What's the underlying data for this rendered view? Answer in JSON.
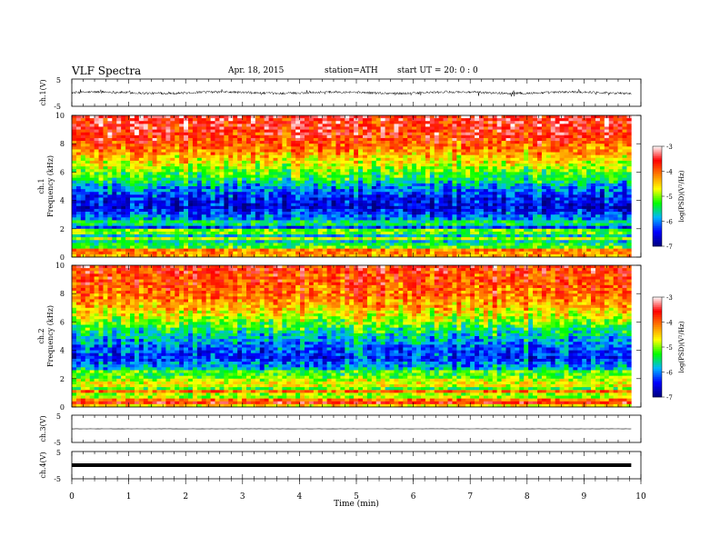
{
  "header": {
    "title": "VLF  Spectra",
    "date": "Apr. 18, 2015",
    "station": "station=ATH",
    "start": "start  UT  =   20: 0  : 0"
  },
  "chart_data": [
    {
      "type": "line",
      "panel": "ch1-waveform",
      "ylabel": "ch.1(V)",
      "ylim": [
        -5,
        5
      ],
      "yticks": [
        "5",
        "-5"
      ],
      "xlim": [
        0,
        10
      ],
      "data_end_min": 9.83,
      "trace": "dense noise waveform, amplitude about -0.5 to 0.5 V with occasional spikes near ±1 V"
    },
    {
      "type": "heatmap",
      "panel": "ch1-spectrogram",
      "ylabel": "Frequency  (kHz)",
      "channel_label": "ch.1",
      "ylim": [
        0,
        10
      ],
      "yticks": [
        "0",
        "2",
        "4",
        "6",
        "8",
        "10"
      ],
      "xlim": [
        0,
        10
      ],
      "data_end_min": 9.83,
      "colorbar": {
        "label": "log(PSD)(V²/Hz)",
        "range": [
          -7,
          -3
        ],
        "ticks": [
          "-3",
          "-4",
          "-5",
          "-6",
          "-7"
        ],
        "colors": [
          "#000080",
          "#0000ff",
          "#00b4ff",
          "#00ff00",
          "#ffff00",
          "#ff8000",
          "#ff0000",
          "#ffffff"
        ]
      },
      "profile": [
        {
          "f": 0.0,
          "log_psd": -3.6
        },
        {
          "f": 0.5,
          "log_psd": -4.6
        },
        {
          "f": 1.0,
          "log_psd": -5.3
        },
        {
          "f": 1.8,
          "log_psd": -5.6
        },
        {
          "f": 2.2,
          "log_psd": -5.9
        },
        {
          "f": 2.8,
          "log_psd": -6.0
        },
        {
          "f": 3.5,
          "log_psd": -6.6
        },
        {
          "f": 4.2,
          "log_psd": -6.4
        },
        {
          "f": 5.0,
          "log_psd": -5.9
        },
        {
          "f": 5.5,
          "log_psd": -5.4
        },
        {
          "f": 6.5,
          "log_psd": -4.8
        },
        {
          "f": 7.5,
          "log_psd": -4.2
        },
        {
          "f": 8.5,
          "log_psd": -3.7
        },
        {
          "f": 10.0,
          "log_psd": -3.5
        }
      ]
    },
    {
      "type": "heatmap",
      "panel": "ch2-spectrogram",
      "ylabel": "Frequency  (kHz)",
      "channel_label": "ch.2",
      "ylim": [
        0,
        10
      ],
      "yticks": [
        "0",
        "2",
        "4",
        "6",
        "8",
        "10"
      ],
      "xlim": [
        0,
        10
      ],
      "data_end_min": 9.83,
      "colorbar": {
        "label": "log(PSD)(V²/Hz)",
        "range": [
          -7,
          -3
        ],
        "ticks": [
          "-3",
          "-4",
          "-5",
          "-6",
          "-7"
        ],
        "colors": [
          "#000080",
          "#0000ff",
          "#00b4ff",
          "#00ff00",
          "#ffff00",
          "#ff8000",
          "#ff0000",
          "#ffffff"
        ]
      },
      "profile": [
        {
          "f": 0.0,
          "log_psd": -3.9
        },
        {
          "f": 0.5,
          "log_psd": -4.3
        },
        {
          "f": 1.2,
          "log_psd": -4.7
        },
        {
          "f": 2.0,
          "log_psd": -5.3
        },
        {
          "f": 2.8,
          "log_psd": -5.8
        },
        {
          "f": 3.4,
          "log_psd": -6.3
        },
        {
          "f": 4.2,
          "log_psd": -6.1
        },
        {
          "f": 5.0,
          "log_psd": -5.7
        },
        {
          "f": 6.0,
          "log_psd": -5.0
        },
        {
          "f": 7.0,
          "log_psd": -4.4
        },
        {
          "f": 8.0,
          "log_psd": -4.0
        },
        {
          "f": 10.0,
          "log_psd": -3.7
        }
      ]
    },
    {
      "type": "line",
      "panel": "ch3-waveform",
      "ylabel": "ch.3(V)",
      "ylim": [
        -5,
        5
      ],
      "yticks": [
        "5",
        "-5"
      ],
      "xlim": [
        0,
        10
      ],
      "data_end_min": 9.83,
      "trace": "flat line near 0 V with small noise"
    },
    {
      "type": "line",
      "panel": "ch4-waveform",
      "ylabel": "ch.4(V)",
      "ylim": [
        -5,
        5
      ],
      "yticks": [
        "5",
        "-5"
      ],
      "xlim": [
        0,
        10
      ],
      "data_end_min": 9.83,
      "trace": "thick flat line near 0 V"
    }
  ],
  "xaxis": {
    "label": "Time  (min)",
    "ticks": [
      "0",
      "1",
      "2",
      "3",
      "4",
      "5",
      "6",
      "7",
      "8",
      "9",
      "10"
    ]
  }
}
